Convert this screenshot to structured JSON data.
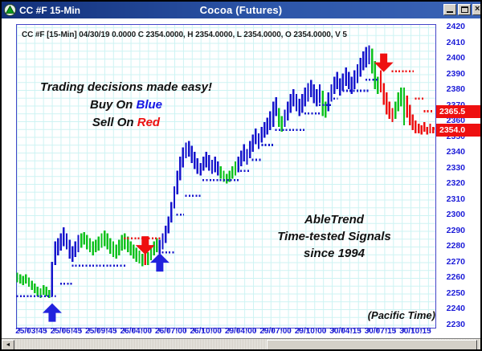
{
  "window": {
    "title": "CC #F 15-Min",
    "center_title": "Cocoa (Futures)"
  },
  "header_line": "CC #F [15-Min] 04/30/19 0.0000 C 2354.0000, H 2354.0000, L 2354.0000, O 2354.0000, V 5",
  "annotations": {
    "tagline": "Trading decisions made easy!",
    "buy_prefix": "Buy On ",
    "buy_word": "Blue",
    "sell_prefix": "Sell On ",
    "sell_word": "Red",
    "brand_line1": "AbleTrend",
    "brand_line2": "Time-tested Signals",
    "brand_line3": "since 1994",
    "timezone": "(Pacific Time)"
  },
  "price_tags": [
    {
      "label": "2365.5",
      "price": 2365.5
    },
    {
      "label": "2354.0",
      "price": 2354.0
    }
  ],
  "colors": {
    "bar_up_trend": "#1515cc",
    "bar_neutral": "#0cc11c",
    "bar_down_trend": "#ee1010",
    "support_dots": "#1515cc",
    "resistance_dots": "#ee1010",
    "buy_arrow": "#2222dd",
    "sell_arrow": "#ee1010",
    "axis": "#4444c8",
    "price_tag_bg": "#ee1010"
  },
  "chart_data": {
    "type": "bar",
    "subtype": "ohlc-trend-bars",
    "symbol": "CC #F",
    "interval": "15-Min",
    "title": "Cocoa (Futures)",
    "y_axis": {
      "min": 2230,
      "max": 2420,
      "step": 10,
      "ticks": [
        "2420",
        "2410",
        "2400",
        "2390",
        "2380",
        "2370",
        "2360",
        "2350",
        "2340",
        "2330",
        "2320",
        "2310",
        "2300",
        "2290",
        "2280",
        "2270",
        "2260",
        "2250",
        "2240",
        "2230"
      ]
    },
    "x_axis": {
      "labels": [
        "25/03:45",
        "25/06:45",
        "25/09:45",
        "26/04:00",
        "26/07:00",
        "26/10:00",
        "29/04:00",
        "29/07:00",
        "29/10:00",
        "30/04:15",
        "30/07:15",
        "30/10:15"
      ]
    },
    "bars": [
      [
        2263,
        2257,
        "g"
      ],
      [
        2262,
        2256,
        "g"
      ],
      [
        2261,
        2255,
        "g"
      ],
      [
        2262,
        2256,
        "g"
      ],
      [
        2260,
        2254,
        "g"
      ],
      [
        2258,
        2252,
        "g"
      ],
      [
        2256,
        2250,
        "g"
      ],
      [
        2254,
        2248,
        "g"
      ],
      [
        2253,
        2247,
        "g"
      ],
      [
        2255,
        2249,
        "g"
      ],
      [
        2254,
        2248,
        "g"
      ],
      [
        2252,
        2247,
        "g"
      ],
      [
        2270,
        2248,
        "b"
      ],
      [
        2283,
        2268,
        "b"
      ],
      [
        2285,
        2274,
        "b"
      ],
      [
        2288,
        2277,
        "b"
      ],
      [
        2292,
        2280,
        "b"
      ],
      [
        2288,
        2278,
        "b"
      ],
      [
        2284,
        2272,
        "b"
      ],
      [
        2280,
        2270,
        "b"
      ],
      [
        2283,
        2273,
        "b"
      ],
      [
        2287,
        2276,
        "b"
      ],
      [
        2288,
        2279,
        "g"
      ],
      [
        2289,
        2281,
        "g"
      ],
      [
        2287,
        2278,
        "g"
      ],
      [
        2285,
        2276,
        "g"
      ],
      [
        2283,
        2274,
        "g"
      ],
      [
        2284,
        2276,
        "g"
      ],
      [
        2286,
        2277,
        "g"
      ],
      [
        2288,
        2279,
        "g"
      ],
      [
        2290,
        2280,
        "g"
      ],
      [
        2288,
        2278,
        "g"
      ],
      [
        2285,
        2275,
        "g"
      ],
      [
        2283,
        2273,
        "g"
      ],
      [
        2281,
        2272,
        "g"
      ],
      [
        2284,
        2274,
        "g"
      ],
      [
        2287,
        2277,
        "g"
      ],
      [
        2288,
        2278,
        "g"
      ],
      [
        2286,
        2276,
        "g"
      ],
      [
        2283,
        2274,
        "g"
      ],
      [
        2281,
        2272,
        "g"
      ],
      [
        2279,
        2270,
        "g"
      ],
      [
        2277,
        2269,
        "g"
      ],
      [
        2275,
        2267,
        "g"
      ],
      [
        2278,
        2268,
        "r"
      ],
      [
        2276,
        2268,
        "g"
      ],
      [
        2280,
        2271,
        "g"
      ],
      [
        2283,
        2274,
        "g"
      ],
      [
        2285,
        2276,
        "g"
      ],
      [
        2284,
        2275,
        "b"
      ],
      [
        2288,
        2278,
        "b"
      ],
      [
        2293,
        2282,
        "b"
      ],
      [
        2299,
        2288,
        "b"
      ],
      [
        2308,
        2295,
        "b"
      ],
      [
        2318,
        2304,
        "b"
      ],
      [
        2328,
        2313,
        "b"
      ],
      [
        2337,
        2322,
        "b"
      ],
      [
        2343,
        2330,
        "b"
      ],
      [
        2346,
        2336,
        "b"
      ],
      [
        2347,
        2337,
        "b"
      ],
      [
        2344,
        2333,
        "b"
      ],
      [
        2340,
        2329,
        "b"
      ],
      [
        2336,
        2326,
        "b"
      ],
      [
        2333,
        2325,
        "b"
      ],
      [
        2337,
        2328,
        "b"
      ],
      [
        2340,
        2330,
        "b"
      ],
      [
        2338,
        2328,
        "b"
      ],
      [
        2335,
        2326,
        "b"
      ],
      [
        2337,
        2327,
        "b"
      ],
      [
        2334,
        2325,
        "b"
      ],
      [
        2331,
        2323,
        "g"
      ],
      [
        2328,
        2321,
        "g"
      ],
      [
        2326,
        2320,
        "g"
      ],
      [
        2328,
        2321,
        "g"
      ],
      [
        2331,
        2323,
        "g"
      ],
      [
        2334,
        2325,
        "g"
      ],
      [
        2337,
        2327,
        "b"
      ],
      [
        2341,
        2331,
        "b"
      ],
      [
        2345,
        2334,
        "b"
      ],
      [
        2342,
        2332,
        "b"
      ],
      [
        2347,
        2336,
        "b"
      ],
      [
        2351,
        2340,
        "b"
      ],
      [
        2355,
        2345,
        "b"
      ],
      [
        2352,
        2342,
        "b"
      ],
      [
        2356,
        2346,
        "b"
      ],
      [
        2359,
        2349,
        "b"
      ],
      [
        2362,
        2351,
        "b"
      ],
      [
        2366,
        2354,
        "b"
      ],
      [
        2372,
        2356,
        "b"
      ],
      [
        2375,
        2363,
        "b"
      ],
      [
        2368,
        2356,
        "g"
      ],
      [
        2363,
        2353,
        "g"
      ],
      [
        2367,
        2356,
        "b"
      ],
      [
        2372,
        2360,
        "b"
      ],
      [
        2377,
        2365,
        "b"
      ],
      [
        2380,
        2369,
        "b"
      ],
      [
        2377,
        2366,
        "b"
      ],
      [
        2374,
        2363,
        "b"
      ],
      [
        2377,
        2365,
        "b"
      ],
      [
        2381,
        2369,
        "b"
      ],
      [
        2384,
        2372,
        "b"
      ],
      [
        2386,
        2375,
        "b"
      ],
      [
        2383,
        2371,
        "b"
      ],
      [
        2380,
        2369,
        "b"
      ],
      [
        2383,
        2371,
        "b"
      ],
      [
        2379,
        2363,
        "g"
      ],
      [
        2372,
        2362,
        "g"
      ],
      [
        2378,
        2366,
        "b"
      ],
      [
        2383,
        2372,
        "b"
      ],
      [
        2388,
        2377,
        "b"
      ],
      [
        2391,
        2380,
        "b"
      ],
      [
        2387,
        2376,
        "b"
      ],
      [
        2390,
        2379,
        "b"
      ],
      [
        2394,
        2382,
        "b"
      ],
      [
        2391,
        2380,
        "b"
      ],
      [
        2388,
        2377,
        "b"
      ],
      [
        2392,
        2380,
        "b"
      ],
      [
        2396,
        2384,
        "b"
      ],
      [
        2400,
        2388,
        "b"
      ],
      [
        2404,
        2392,
        "b"
      ],
      [
        2407,
        2394,
        "b"
      ],
      [
        2408,
        2396,
        "b"
      ],
      [
        2406,
        2390,
        "g"
      ],
      [
        2398,
        2380,
        "g"
      ],
      [
        2388,
        2377,
        "g"
      ],
      [
        2392,
        2378,
        "r"
      ],
      [
        2384,
        2370,
        "r"
      ],
      [
        2378,
        2364,
        "r"
      ],
      [
        2372,
        2361,
        "r"
      ],
      [
        2368,
        2359,
        "r"
      ],
      [
        2372,
        2361,
        "g"
      ],
      [
        2378,
        2366,
        "g"
      ],
      [
        2381,
        2369,
        "g"
      ],
      [
        2381,
        2357,
        "g"
      ],
      [
        2376,
        2362,
        "r"
      ],
      [
        2370,
        2357,
        "r"
      ],
      [
        2364,
        2354,
        "r"
      ],
      [
        2360,
        2352,
        "r"
      ],
      [
        2358,
        2352,
        "r"
      ],
      [
        2357,
        2351,
        "r"
      ],
      [
        2359,
        2353,
        "r"
      ],
      [
        2356,
        2351,
        "r"
      ],
      [
        2358,
        2352,
        "r"
      ],
      [
        2356,
        2352,
        "r"
      ]
    ],
    "support_dots": [
      {
        "price": 2248,
        "from": 0,
        "to": 13
      },
      {
        "price": 2256,
        "from": 15,
        "to": 19
      },
      {
        "price": 2267.5,
        "from": 19,
        "to": 37
      },
      {
        "price": 2276,
        "from": 50,
        "to": 54
      },
      {
        "price": 2300,
        "from": 55,
        "to": 57
      },
      {
        "price": 2312,
        "from": 58,
        "to": 63
      },
      {
        "price": 2322,
        "from": 64,
        "to": 76
      },
      {
        "price": 2328,
        "from": 77,
        "to": 80
      },
      {
        "price": 2335,
        "from": 81,
        "to": 84
      },
      {
        "price": 2344.5,
        "from": 83,
        "to": 88
      },
      {
        "price": 2354,
        "from": 89,
        "to": 99
      },
      {
        "price": 2364.5,
        "from": 99,
        "to": 104
      },
      {
        "price": 2370,
        "from": 104,
        "to": 108
      },
      {
        "price": 2374,
        "from": 109,
        "to": 110
      },
      {
        "price": 2379,
        "from": 111,
        "to": 121
      },
      {
        "price": 2386,
        "from": 120,
        "to": 124
      }
    ],
    "resistance_dots": [
      {
        "price": 2285,
        "from": 37,
        "to": 49
      },
      {
        "price": 2391.5,
        "from": 129,
        "to": 136
      },
      {
        "price": 2374,
        "from": 137,
        "to": 140
      },
      {
        "price": 2366,
        "from": 140,
        "to": 143
      },
      {
        "price": 2355,
        "from": 142,
        "to": 145
      }
    ],
    "signals": [
      {
        "type": "buy",
        "bar": 12,
        "tip_price": 2243.5
      },
      {
        "type": "sell",
        "bar": 44,
        "tip_price": 2274.5
      },
      {
        "type": "buy",
        "bar": 49,
        "tip_price": 2275.5
      },
      {
        "type": "sell",
        "bar": 126,
        "tip_price": 2391
      }
    ]
  }
}
